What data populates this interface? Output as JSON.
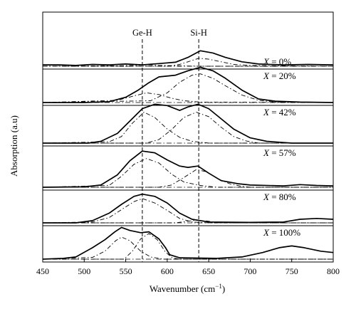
{
  "chart_data": {
    "type": "line",
    "xlabel": "Wavenumber (cm",
    "xlabel_sup": "−1",
    "xlabel_close": ")",
    "ylabel": "Absorption (a.u)",
    "xlim": [
      450,
      800
    ],
    "x_ticks": [
      "450",
      "500",
      "550",
      "600",
      "650",
      "700",
      "750",
      "800"
    ],
    "grid": false,
    "reference_lines": [
      {
        "label": "Ge-H",
        "x": 570
      },
      {
        "label": "Si-H",
        "x": 638
      }
    ],
    "panels": [
      {
        "var": "X",
        "eq": " = ",
        "value": "0%",
        "measured": [
          [
            450,
            0.03
          ],
          [
            470,
            0.03
          ],
          [
            490,
            0.02
          ],
          [
            510,
            0.04
          ],
          [
            530,
            0.03
          ],
          [
            550,
            0.05
          ],
          [
            570,
            0.03
          ],
          [
            590,
            0.06
          ],
          [
            610,
            0.09
          ],
          [
            625,
            0.2
          ],
          [
            640,
            0.35
          ],
          [
            655,
            0.3
          ],
          [
            670,
            0.2
          ],
          [
            690,
            0.1
          ],
          [
            710,
            0.05
          ],
          [
            740,
            0.03
          ],
          [
            770,
            0.04
          ],
          [
            800,
            0.03
          ]
        ],
        "fits": [
          [
            [
              450,
              0
            ],
            [
              540,
              0.01
            ],
            [
              560,
              0.02
            ],
            [
              575,
              0.03
            ],
            [
              590,
              0.02
            ],
            [
              610,
              0.01
            ],
            [
              640,
              0
            ],
            [
              800,
              0
            ]
          ],
          [
            [
              450,
              0
            ],
            [
              600,
              0
            ],
            [
              615,
              0.04
            ],
            [
              625,
              0.1
            ],
            [
              638,
              0.18
            ],
            [
              650,
              0.16
            ],
            [
              665,
              0.1
            ],
            [
              680,
              0.04
            ],
            [
              700,
              0.02
            ],
            [
              730,
              0.01
            ],
            [
              800,
              0
            ]
          ]
        ]
      },
      {
        "var": "X",
        "eq": " = ",
        "value": "20%",
        "measured": [
          [
            450,
            0
          ],
          [
            500,
            0
          ],
          [
            530,
            0.02
          ],
          [
            550,
            0.12
          ],
          [
            565,
            0.28
          ],
          [
            578,
            0.45
          ],
          [
            590,
            0.58
          ],
          [
            610,
            0.62
          ],
          [
            625,
            0.72
          ],
          [
            640,
            0.8
          ],
          [
            655,
            0.72
          ],
          [
            670,
            0.55
          ],
          [
            690,
            0.28
          ],
          [
            710,
            0.08
          ],
          [
            730,
            0.03
          ],
          [
            760,
            0.01
          ],
          [
            800,
            0
          ]
        ],
        "fits": [
          [
            [
              450,
              0
            ],
            [
              540,
              0.05
            ],
            [
              560,
              0.15
            ],
            [
              575,
              0.22
            ],
            [
              590,
              0.18
            ],
            [
              605,
              0.1
            ],
            [
              620,
              0.04
            ],
            [
              640,
              0.01
            ],
            [
              800,
              0
            ]
          ],
          [
            [
              450,
              0
            ],
            [
              580,
              0.04
            ],
            [
              600,
              0.22
            ],
            [
              615,
              0.46
            ],
            [
              630,
              0.62
            ],
            [
              640,
              0.65
            ],
            [
              655,
              0.55
            ],
            [
              670,
              0.38
            ],
            [
              690,
              0.17
            ],
            [
              710,
              0.05
            ],
            [
              730,
              0.01
            ],
            [
              800,
              0
            ]
          ]
        ]
      },
      {
        "var": "X",
        "eq": " = ",
        "value": "42%",
        "measured": [
          [
            450,
            0
          ],
          [
            505,
            0
          ],
          [
            520,
            0.04
          ],
          [
            540,
            0.22
          ],
          [
            555,
            0.5
          ],
          [
            570,
            0.78
          ],
          [
            585,
            0.88
          ],
          [
            600,
            0.85
          ],
          [
            615,
            0.74
          ],
          [
            625,
            0.82
          ],
          [
            637,
            0.88
          ],
          [
            650,
            0.78
          ],
          [
            665,
            0.55
          ],
          [
            680,
            0.32
          ],
          [
            700,
            0.12
          ],
          [
            720,
            0.04
          ],
          [
            750,
            0
          ],
          [
            800,
            0
          ]
        ],
        "fits": [
          [
            [
              450,
              0
            ],
            [
              530,
              0.03
            ],
            [
              545,
              0.15
            ],
            [
              558,
              0.45
            ],
            [
              572,
              0.7
            ],
            [
              585,
              0.58
            ],
            [
              600,
              0.32
            ],
            [
              615,
              0.13
            ],
            [
              630,
              0.04
            ],
            [
              650,
              0
            ],
            [
              800,
              0
            ]
          ],
          [
            [
              450,
              0
            ],
            [
              575,
              0
            ],
            [
              590,
              0.08
            ],
            [
              605,
              0.3
            ],
            [
              620,
              0.58
            ],
            [
              635,
              0.7
            ],
            [
              650,
              0.6
            ],
            [
              665,
              0.36
            ],
            [
              680,
              0.15
            ],
            [
              695,
              0.05
            ],
            [
              710,
              0
            ],
            [
              800,
              0
            ]
          ]
        ]
      },
      {
        "var": "X",
        "eq": " = ",
        "value": "57%",
        "measured": [
          [
            450,
            0
          ],
          [
            500,
            0.01
          ],
          [
            520,
            0.05
          ],
          [
            540,
            0.28
          ],
          [
            555,
            0.6
          ],
          [
            570,
            0.82
          ],
          [
            585,
            0.78
          ],
          [
            600,
            0.62
          ],
          [
            615,
            0.48
          ],
          [
            625,
            0.45
          ],
          [
            637,
            0.48
          ],
          [
            650,
            0.32
          ],
          [
            665,
            0.15
          ],
          [
            685,
            0.08
          ],
          [
            700,
            0.05
          ],
          [
            740,
            0.03
          ],
          [
            760,
            0.06
          ],
          [
            780,
            0.04
          ],
          [
            800,
            0.03
          ]
        ],
        "fits": [
          [
            [
              450,
              0
            ],
            [
              530,
              0.04
            ],
            [
              545,
              0.25
            ],
            [
              560,
              0.52
            ],
            [
              575,
              0.65
            ],
            [
              590,
              0.55
            ],
            [
              605,
              0.3
            ],
            [
              620,
              0.12
            ],
            [
              640,
              0.04
            ],
            [
              660,
              0
            ],
            [
              800,
              0
            ]
          ],
          [
            [
              450,
              0
            ],
            [
              590,
              0
            ],
            [
              605,
              0.05
            ],
            [
              620,
              0.22
            ],
            [
              635,
              0.4
            ],
            [
              648,
              0.35
            ],
            [
              660,
              0.2
            ],
            [
              675,
              0.08
            ],
            [
              690,
              0.02
            ],
            [
              700,
              0
            ],
            [
              800,
              0
            ]
          ]
        ]
      },
      {
        "var": "X",
        "eq": " = ",
        "value": "80%",
        "measured": [
          [
            450,
            0
          ],
          [
            490,
            0
          ],
          [
            510,
            0.05
          ],
          [
            530,
            0.22
          ],
          [
            545,
            0.42
          ],
          [
            560,
            0.6
          ],
          [
            570,
            0.65
          ],
          [
            585,
            0.6
          ],
          [
            600,
            0.45
          ],
          [
            615,
            0.22
          ],
          [
            630,
            0.08
          ],
          [
            650,
            0.02
          ],
          [
            700,
            0.01
          ],
          [
            740,
            0.02
          ],
          [
            760,
            0.08
          ],
          [
            780,
            0.1
          ],
          [
            800,
            0.08
          ]
        ],
        "fits": [
          [
            [
              450,
              0
            ],
            [
              510,
              0.02
            ],
            [
              530,
              0.12
            ],
            [
              545,
              0.3
            ],
            [
              560,
              0.48
            ],
            [
              570,
              0.55
            ],
            [
              585,
              0.45
            ],
            [
              600,
              0.28
            ],
            [
              615,
              0.1
            ],
            [
              630,
              0.02
            ],
            [
              650,
              0
            ],
            [
              800,
              0
            ]
          ],
          [
            [
              450,
              0
            ],
            [
              610,
              0
            ],
            [
              622,
              0.03
            ],
            [
              635,
              0.06
            ],
            [
              648,
              0.04
            ],
            [
              660,
              0.01
            ],
            [
              680,
              0
            ],
            [
              800,
              0
            ]
          ]
        ]
      },
      {
        "var": "X",
        "eq": " = ",
        "value": "100%",
        "measured": [
          [
            450,
            0
          ],
          [
            475,
            0.02
          ],
          [
            490,
            0.05
          ],
          [
            510,
            0.26
          ],
          [
            525,
            0.44
          ],
          [
            537,
            0.62
          ],
          [
            545,
            0.72
          ],
          [
            555,
            0.65
          ],
          [
            568,
            0.6
          ],
          [
            578,
            0.62
          ],
          [
            590,
            0.46
          ],
          [
            598,
            0.26
          ],
          [
            603,
            0.1
          ],
          [
            615,
            0.03
          ],
          [
            660,
            0.02
          ],
          [
            690,
            0.05
          ],
          [
            715,
            0.15
          ],
          [
            735,
            0.26
          ],
          [
            750,
            0.3
          ],
          [
            765,
            0.26
          ],
          [
            785,
            0.18
          ],
          [
            800,
            0.15
          ]
        ],
        "fits": [
          [
            [
              450,
              0
            ],
            [
              510,
              0.04
            ],
            [
              525,
              0.18
            ],
            [
              538,
              0.42
            ],
            [
              545,
              0.5
            ],
            [
              555,
              0.42
            ],
            [
              568,
              0.18
            ],
            [
              580,
              0.05
            ],
            [
              595,
              0
            ],
            [
              800,
              0
            ]
          ],
          [
            [
              450,
              0
            ],
            [
              548,
              0
            ],
            [
              558,
              0.18
            ],
            [
              568,
              0.46
            ],
            [
              578,
              0.58
            ],
            [
              588,
              0.44
            ],
            [
              598,
              0.16
            ],
            [
              606,
              0.03
            ],
            [
              615,
              0
            ],
            [
              800,
              0
            ]
          ]
        ]
      }
    ]
  }
}
